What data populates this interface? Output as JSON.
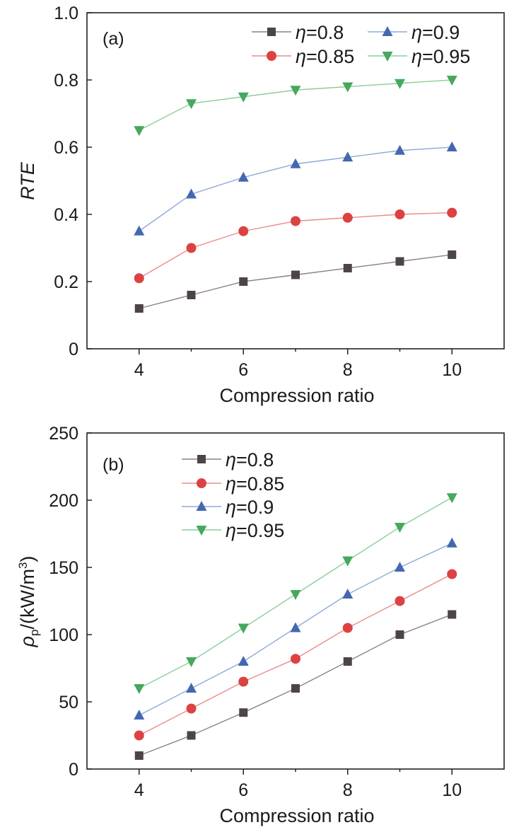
{
  "colors": {
    "eta_0.8": "#4d4545",
    "eta_0.85": "#dc4242",
    "eta_0.9": "#4468b0",
    "eta_0.95": "#46a85c",
    "line_0.8": "#8e8282",
    "line_0.85": "#ec8a8a",
    "line_0.9": "#8eaad8",
    "line_0.95": "#8ccd9c"
  },
  "chart_data": [
    {
      "type": "line",
      "panel_label": "(a)",
      "xlabel": "Compression ratio",
      "ylabel": "RTE",
      "xlim": [
        3,
        11
      ],
      "ylim": [
        0,
        1.0
      ],
      "xticks": [
        4,
        6,
        8,
        10
      ],
      "yticks": [
        0,
        0.2,
        0.4,
        0.6,
        0.8,
        1.0
      ],
      "ytick_labels": [
        "0",
        "0.2",
        "0.4",
        "0.6",
        "0.8",
        "1.0"
      ],
      "x": [
        4,
        5,
        6,
        7,
        8,
        9,
        10
      ],
      "legend_location": "top-right",
      "series": [
        {
          "name": "η=0.8",
          "eta_symbol": "η",
          "eta_value": "=0.8",
          "marker": "square",
          "color_key": "0.8",
          "values": [
            0.12,
            0.16,
            0.2,
            0.22,
            0.24,
            0.26,
            0.28
          ]
        },
        {
          "name": "η=0.85",
          "eta_symbol": "η",
          "eta_value": "=0.85",
          "marker": "circle",
          "color_key": "0.85",
          "values": [
            0.21,
            0.3,
            0.35,
            0.38,
            0.39,
            0.4,
            0.405
          ]
        },
        {
          "name": "η=0.9",
          "eta_symbol": "η",
          "eta_value": "=0.9",
          "marker": "triangle-up",
          "color_key": "0.9",
          "values": [
            0.35,
            0.46,
            0.51,
            0.55,
            0.57,
            0.59,
            0.6
          ]
        },
        {
          "name": "η=0.95",
          "eta_symbol": "η",
          "eta_value": "=0.95",
          "marker": "triangle-down",
          "color_key": "0.95",
          "values": [
            0.65,
            0.73,
            0.75,
            0.77,
            0.78,
            0.79,
            0.8
          ]
        }
      ]
    },
    {
      "type": "line",
      "panel_label": "(b)",
      "xlabel": "Compression ratio",
      "ylabel_parts": {
        "symbol": "ρ",
        "subscript": "p",
        "unit_open": "/(kW/m",
        "superscript": "3",
        "unit_close": ")"
      },
      "xlim": [
        3,
        11
      ],
      "ylim": [
        0,
        250
      ],
      "xticks": [
        4,
        6,
        8,
        10
      ],
      "yticks": [
        0,
        50,
        100,
        150,
        200,
        250
      ],
      "ytick_labels": [
        "0",
        "50",
        "100",
        "150",
        "200",
        "250"
      ],
      "x": [
        4,
        5,
        6,
        7,
        8,
        9,
        10
      ],
      "legend_location": "top-left",
      "series": [
        {
          "name": "η=0.8",
          "eta_symbol": "η",
          "eta_value": "=0.8",
          "marker": "square",
          "color_key": "0.8",
          "values": [
            10,
            25,
            42,
            60,
            80,
            100,
            115
          ]
        },
        {
          "name": "η=0.85",
          "eta_symbol": "η",
          "eta_value": "=0.85",
          "marker": "circle",
          "color_key": "0.85",
          "values": [
            25,
            45,
            65,
            82,
            105,
            125,
            145
          ]
        },
        {
          "name": "η=0.9",
          "eta_symbol": "η",
          "eta_value": "=0.9",
          "marker": "triangle-up",
          "color_key": "0.9",
          "values": [
            40,
            60,
            80,
            105,
            130,
            150,
            168
          ]
        },
        {
          "name": "η=0.95",
          "eta_symbol": "η",
          "eta_value": "=0.95",
          "marker": "triangle-down",
          "color_key": "0.95",
          "values": [
            60,
            80,
            105,
            130,
            155,
            180,
            202
          ]
        }
      ]
    }
  ]
}
